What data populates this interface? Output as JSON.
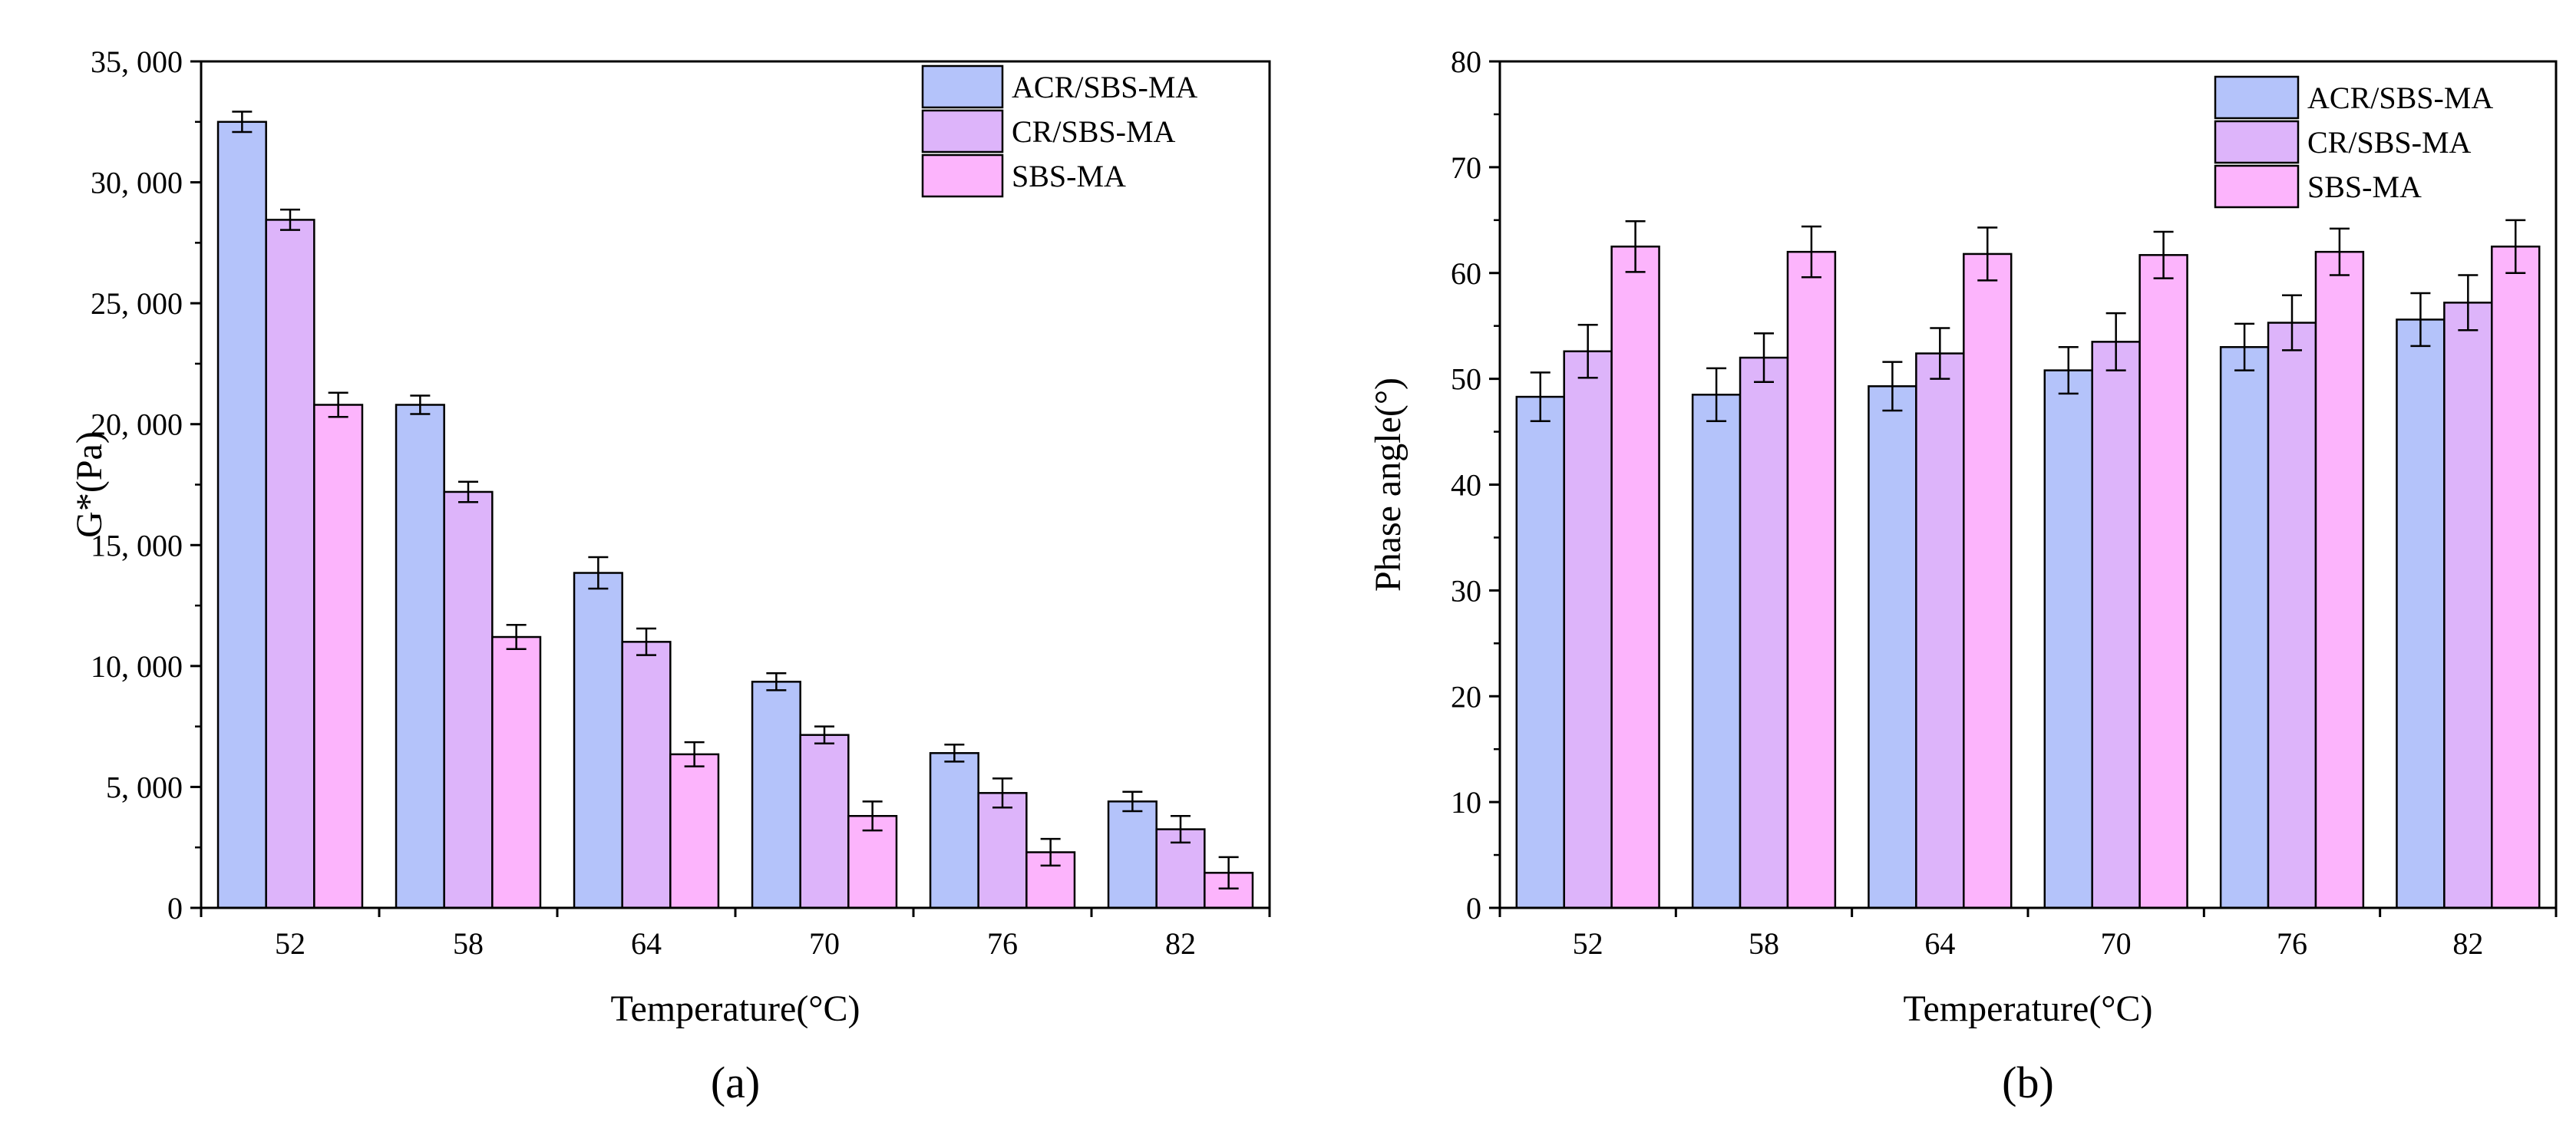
{
  "chart_data": [
    {
      "type": "bar",
      "panel_label": "(a)",
      "title": "",
      "xlabel": "Temperature(°C)",
      "ylabel": "G*(Pa)",
      "categories": [
        "52",
        "58",
        "64",
        "70",
        "76",
        "82"
      ],
      "ylim": [
        0,
        35000
      ],
      "yticks": [
        0,
        5000,
        10000,
        15000,
        20000,
        25000,
        30000,
        35000
      ],
      "ytick_labels": [
        "0",
        "5, 000",
        "10, 000",
        "15, 000",
        "20, 000",
        "25, 000",
        "30, 000",
        "35, 000"
      ],
      "legend_position": "top-right",
      "grid": false,
      "series": [
        {
          "name": "ACR/SBS-MA",
          "color": "#b4c3fa",
          "values": [
            32500,
            20800,
            13850,
            9350,
            6400,
            4400
          ],
          "errors": [
            420,
            380,
            650,
            350,
            350,
            400
          ]
        },
        {
          "name": "CR/SBS-MA",
          "color": "#ddb4fa",
          "values": [
            28450,
            17200,
            11000,
            7150,
            4750,
            3250
          ],
          "errors": [
            420,
            420,
            550,
            350,
            600,
            550
          ]
        },
        {
          "name": "SBS-MA",
          "color": "#fcb4fc",
          "values": [
            20800,
            11200,
            6350,
            3800,
            2300,
            1450
          ],
          "errors": [
            500,
            500,
            500,
            600,
            550,
            650
          ]
        }
      ]
    },
    {
      "type": "bar",
      "panel_label": "(b)",
      "title": "",
      "xlabel": "Temperature(°C)",
      "ylabel": "Phase angle(°)",
      "categories": [
        "52",
        "58",
        "64",
        "70",
        "76",
        "82"
      ],
      "ylim": [
        0,
        80
      ],
      "yticks": [
        0,
        10,
        20,
        30,
        40,
        50,
        60,
        70,
        80
      ],
      "ytick_labels": [
        "0",
        "10",
        "20",
        "30",
        "40",
        "50",
        "60",
        "70",
        "80"
      ],
      "legend_position": "top-right",
      "grid": false,
      "series": [
        {
          "name": "ACR/SBS-MA",
          "color": "#b4c3fa",
          "values": [
            48.3,
            48.5,
            49.3,
            50.8,
            53.0,
            55.6
          ],
          "errors": [
            2.3,
            2.5,
            2.3,
            2.2,
            2.2,
            2.5
          ]
        },
        {
          "name": "CR/SBS-MA",
          "color": "#ddb4fa",
          "values": [
            52.6,
            52.0,
            52.4,
            53.5,
            55.3,
            57.2
          ],
          "errors": [
            2.5,
            2.3,
            2.4,
            2.7,
            2.6,
            2.6
          ]
        },
        {
          "name": "SBS-MA",
          "color": "#fcb4fc",
          "values": [
            62.5,
            62.0,
            61.8,
            61.7,
            62.0,
            62.5
          ],
          "errors": [
            2.4,
            2.4,
            2.5,
            2.2,
            2.2,
            2.5
          ]
        }
      ]
    }
  ]
}
